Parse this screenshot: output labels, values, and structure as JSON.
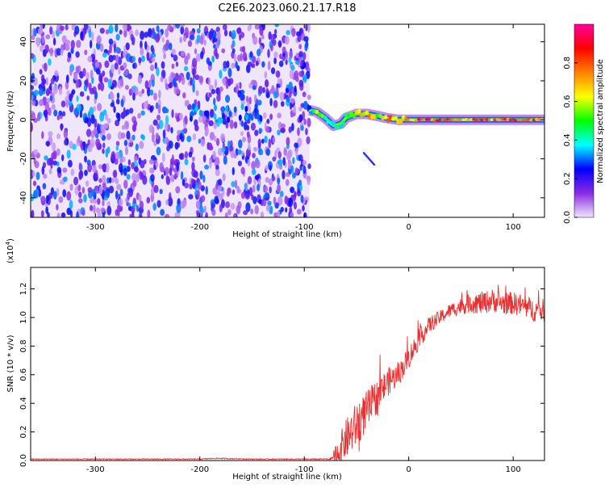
{
  "page_title": "C2E6.2023.060.21.17.R18",
  "chart_data": [
    {
      "type": "heatmap",
      "title": "C2E6.2023.060.21.17.R18",
      "xlabel": "Height of straight line (km)",
      "ylabel": "Frequency (Hz)",
      "xlim": [
        -362,
        130
      ],
      "ylim": [
        -50,
        49
      ],
      "x_ticks": [
        -300,
        -200,
        -100,
        0,
        100
      ],
      "y_ticks": [
        -40,
        -20,
        0,
        20,
        40
      ],
      "colorbar": {
        "label": "Normalized spectral amplitude",
        "range": [
          0,
          1
        ],
        "ticks": [
          0.0,
          0.2,
          0.4,
          0.6,
          0.8
        ],
        "colormap": [
          "#f0e6ff",
          "#8a2be2",
          "#0000ff",
          "#00ffff",
          "#00ff00",
          "#ffff00",
          "#ff8000",
          "#ff0000",
          "#ff00a0"
        ]
      },
      "noise_region": {
        "x": [
          -362,
          -95
        ],
        "amplitude_range": [
          0.0,
          0.4
        ]
      },
      "signal_track": [
        {
          "x": -95,
          "y": 5,
          "amp": 0.3
        },
        {
          "x": -88,
          "y": 4,
          "amp": 0.7
        },
        {
          "x": -80,
          "y": 1,
          "amp": 0.55
        },
        {
          "x": -72,
          "y": -3,
          "amp": 0.45
        },
        {
          "x": -65,
          "y": -2,
          "amp": 0.5
        },
        {
          "x": -60,
          "y": 1,
          "amp": 0.55
        },
        {
          "x": -50,
          "y": 3,
          "amp": 0.75
        },
        {
          "x": -40,
          "y": 3,
          "amp": 0.8
        },
        {
          "x": -30,
          "y": 2,
          "amp": 0.7
        },
        {
          "x": -22,
          "y": 1,
          "amp": 0.85
        },
        {
          "x": -10,
          "y": 0,
          "amp": 0.8
        },
        {
          "x": 0,
          "y": 0,
          "amp": 0.9
        },
        {
          "x": 130,
          "y": 0,
          "amp": 0.9
        }
      ],
      "minor_feature": {
        "x": [
          -43,
          -33
        ],
        "y": [
          -17,
          -23
        ],
        "amp": 0.25
      }
    },
    {
      "type": "line",
      "xlabel": "Height of straight line (km)",
      "ylabel": "SNR (10 * v/v)",
      "scale_note": "(x10",
      "scale_exp": "4",
      "scale_close": ")",
      "xlim": [
        -362,
        130
      ],
      "ylim": [
        0,
        1.35
      ],
      "x_ticks": [
        -300,
        -200,
        -100,
        0,
        100
      ],
      "y_ticks": [
        0.0,
        0.2,
        0.4,
        0.6,
        0.8,
        1.0,
        1.2
      ],
      "line_color": "#e83030",
      "series": [
        {
          "x": [
            -362,
            -300,
            -250,
            -200,
            -185,
            -150,
            -100,
            -75,
            -68,
            -60,
            -50,
            -40,
            -30,
            -20,
            -10,
            0,
            10,
            20,
            30,
            40,
            50,
            60,
            70,
            80,
            90,
            100,
            110,
            120,
            130
          ],
          "y": [
            0.01,
            0.01,
            0.01,
            0.01,
            0.015,
            0.01,
            0.01,
            0.01,
            0.05,
            0.15,
            0.25,
            0.35,
            0.45,
            0.55,
            0.6,
            0.72,
            0.85,
            0.95,
            1.0,
            1.05,
            1.08,
            1.1,
            1.1,
            1.12,
            1.1,
            1.1,
            1.08,
            1.05,
            1.05
          ],
          "noise": [
            0.003,
            0.003,
            0.003,
            0.003,
            0.004,
            0.003,
            0.003,
            0.005,
            0.1,
            0.14,
            0.16,
            0.14,
            0.12,
            0.1,
            0.08,
            0.08,
            0.07,
            0.06,
            0.05,
            0.05,
            0.06,
            0.07,
            0.08,
            0.08,
            0.08,
            0.08,
            0.08,
            0.08,
            0.08
          ]
        }
      ]
    }
  ]
}
